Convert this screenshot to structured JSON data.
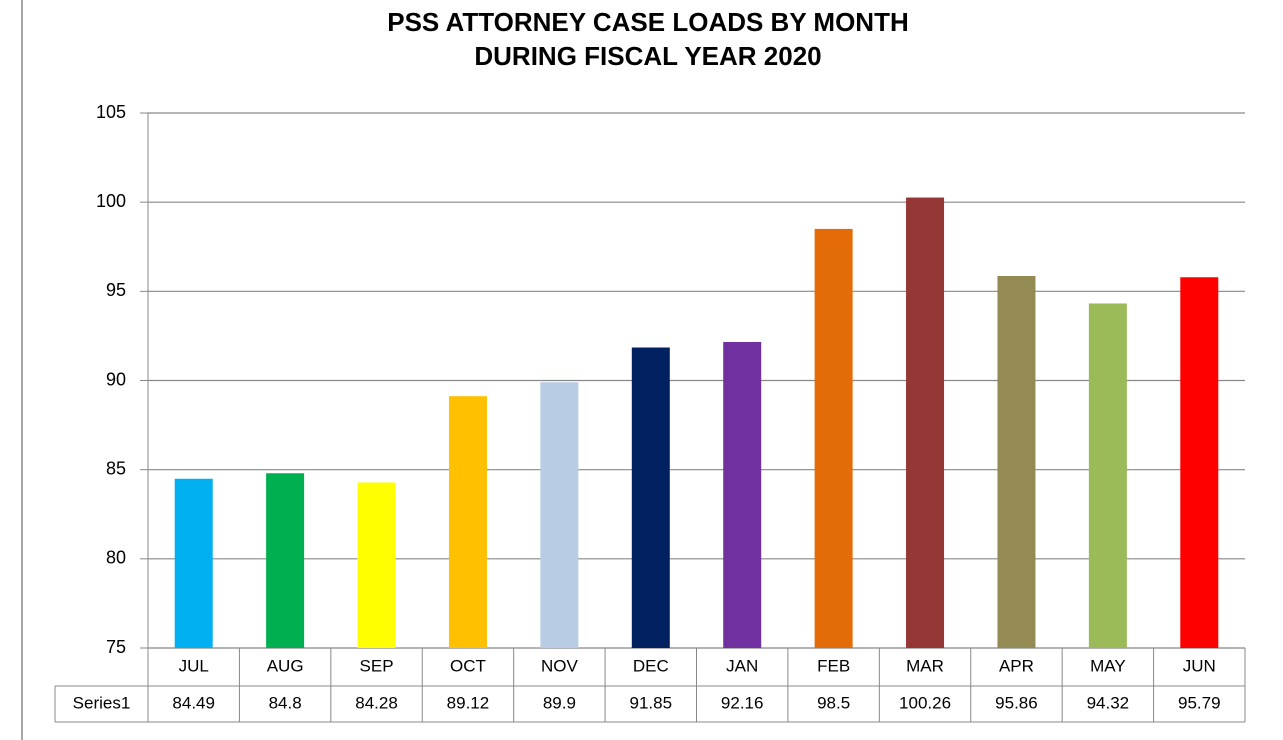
{
  "chart_data": {
    "type": "bar",
    "title": [
      "PSS ATTORNEY CASE LOADS BY MONTH",
      "DURING FISCAL YEAR 2020"
    ],
    "categories": [
      "JUL",
      "AUG",
      "SEP",
      "OCT",
      "NOV",
      "DEC",
      "JAN",
      "FEB",
      "MAR",
      "APR",
      "MAY",
      "JUN"
    ],
    "series": [
      {
        "name": "Series1",
        "colors": [
          "#00b0f0",
          "#00b050",
          "#ffff00",
          "#ffc000",
          "#b8cce4",
          "#002060",
          "#7030a0",
          "#e36c09",
          "#953735",
          "#948a54",
          "#9bbb59",
          "#ff0000"
        ],
        "values": [
          84.49,
          84.8,
          84.28,
          89.12,
          89.9,
          91.85,
          92.16,
          98.5,
          100.26,
          95.86,
          94.32,
          95.79
        ]
      }
    ],
    "ylim": [
      75,
      105
    ],
    "yticks": [
      75,
      80,
      85,
      90,
      95,
      100,
      105
    ],
    "grid": true,
    "data_table": true
  }
}
